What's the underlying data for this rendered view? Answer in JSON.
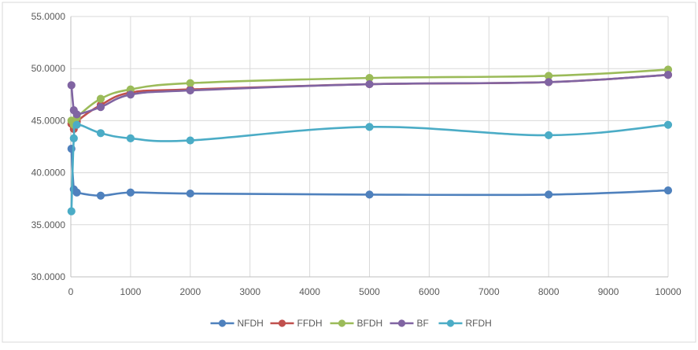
{
  "chart_data": {
    "type": "line",
    "title": "",
    "xlabel": "",
    "ylabel": "",
    "xlim": [
      0,
      10000
    ],
    "ylim": [
      30,
      55
    ],
    "x_ticks": [
      0,
      1000,
      2000,
      3000,
      4000,
      5000,
      6000,
      7000,
      8000,
      9000,
      10000
    ],
    "x_tick_labels": [
      "0",
      "1000",
      "2000",
      "3000",
      "4000",
      "5000",
      "6000",
      "7000",
      "8000",
      "9000",
      "10000"
    ],
    "y_ticks": [
      30,
      35,
      40,
      45,
      50,
      55
    ],
    "y_tick_labels": [
      "30.0000",
      "35.0000",
      "40.0000",
      "45.0000",
      "50.0000",
      "55.0000"
    ],
    "grid": true,
    "legend_position": "bottom",
    "smooth": true,
    "series": [
      {
        "name": "NFDH",
        "color": "#4F81BD",
        "points": [
          [
            10,
            42.3
          ],
          [
            50,
            38.4
          ],
          [
            100,
            38.1
          ],
          [
            500,
            37.8
          ],
          [
            1000,
            38.1
          ],
          [
            2000,
            38.0
          ],
          [
            5000,
            37.9
          ],
          [
            8000,
            37.9
          ],
          [
            10000,
            38.3
          ]
        ]
      },
      {
        "name": "FFDH",
        "color": "#C0504D",
        "points": [
          [
            10,
            44.7
          ],
          [
            50,
            44.2
          ],
          [
            100,
            44.9
          ],
          [
            500,
            46.5
          ],
          [
            1000,
            47.7
          ],
          [
            2000,
            48.0
          ],
          [
            5000,
            48.5
          ],
          [
            8000,
            48.7
          ],
          [
            10000,
            49.4
          ]
        ]
      },
      {
        "name": "BFDH",
        "color": "#9BBB59",
        "points": [
          [
            10,
            45.0
          ],
          [
            50,
            44.6
          ],
          [
            100,
            45.3
          ],
          [
            500,
            47.1
          ],
          [
            1000,
            48.0
          ],
          [
            2000,
            48.6
          ],
          [
            5000,
            49.1
          ],
          [
            8000,
            49.3
          ],
          [
            10000,
            49.9
          ]
        ]
      },
      {
        "name": "BF",
        "color": "#8064A2",
        "points": [
          [
            10,
            48.4
          ],
          [
            50,
            46.0
          ],
          [
            100,
            45.6
          ],
          [
            500,
            46.3
          ],
          [
            1000,
            47.5
          ],
          [
            2000,
            47.9
          ],
          [
            5000,
            48.5
          ],
          [
            8000,
            48.7
          ],
          [
            10000,
            49.4
          ]
        ]
      },
      {
        "name": "RFDH",
        "color": "#4BACC6",
        "points": [
          [
            10,
            36.3
          ],
          [
            50,
            43.3
          ],
          [
            100,
            44.6
          ],
          [
            500,
            43.8
          ],
          [
            1000,
            43.3
          ],
          [
            2000,
            43.1
          ],
          [
            5000,
            44.4
          ],
          [
            8000,
            43.6
          ],
          [
            10000,
            44.6
          ]
        ]
      }
    ]
  }
}
